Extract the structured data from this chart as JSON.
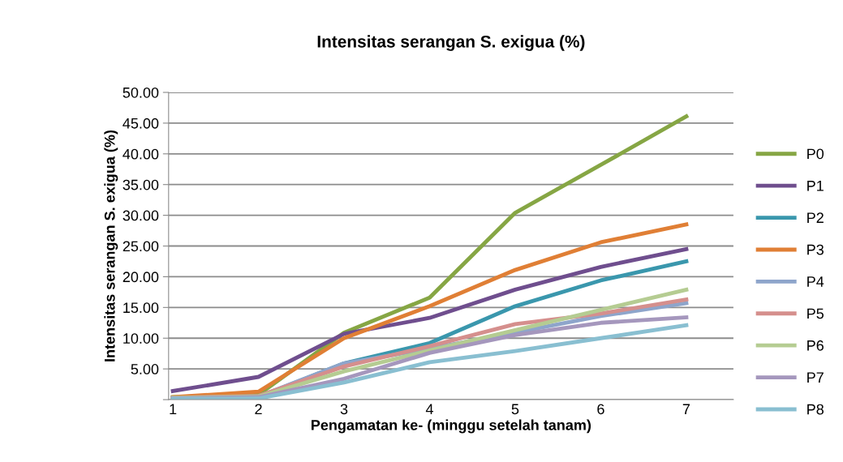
{
  "chart_data": {
    "type": "line",
    "title": "Intensitas serangan S. exigua (%)",
    "xlabel": "Pengamatan ke- (minggu setelah tanam)",
    "ylabel": "Intensitas serangan S. exigua (%)",
    "categories": [
      "1",
      "2",
      "3",
      "4",
      "5",
      "6",
      "7"
    ],
    "ylim": [
      0,
      50
    ],
    "yticks": [
      {
        "value": 0,
        "label": null
      },
      {
        "value": 5,
        "label": "5.00"
      },
      {
        "value": 10,
        "label": "10.00"
      },
      {
        "value": 15,
        "label": "15.00"
      },
      {
        "value": 20,
        "label": "20.00"
      },
      {
        "value": 25,
        "label": "25.00"
      },
      {
        "value": 30,
        "label": "30.00"
      },
      {
        "value": 35,
        "label": "35.00"
      },
      {
        "value": 40,
        "label": "40.00"
      },
      {
        "value": 45,
        "label": "45.00"
      },
      {
        "value": 50,
        "label": "50.00"
      }
    ],
    "grid": "y",
    "legend": "right",
    "marker": "none",
    "line_style": "solid",
    "series": [
      {
        "name": "P0",
        "color": "#86a644",
        "values": [
          0.4,
          0.8,
          10.9,
          16.6,
          30.4,
          38.2,
          46.1
        ]
      },
      {
        "name": "P1",
        "color": "#6f4e8e",
        "values": [
          1.4,
          3.7,
          10.7,
          13.3,
          17.9,
          21.6,
          24.5
        ]
      },
      {
        "name": "P2",
        "color": "#3a97ad",
        "values": [
          0.3,
          0.4,
          5.9,
          9.2,
          15.2,
          19.4,
          22.5
        ]
      },
      {
        "name": "P3",
        "color": "#e07f35",
        "values": [
          0.4,
          1.3,
          10.0,
          15.2,
          21.1,
          25.6,
          28.5
        ]
      },
      {
        "name": "P4",
        "color": "#8ea5cb",
        "values": [
          0.3,
          0.5,
          5.9,
          8.3,
          10.9,
          13.6,
          15.7
        ]
      },
      {
        "name": "P5",
        "color": "#d58f8d",
        "values": [
          0.3,
          0.6,
          5.4,
          8.7,
          12.3,
          14.0,
          16.3
        ]
      },
      {
        "name": "P6",
        "color": "#b5cc92",
        "values": [
          0.3,
          0.5,
          4.6,
          8.0,
          11.3,
          14.6,
          17.9
        ]
      },
      {
        "name": "P7",
        "color": "#a597bd",
        "values": [
          0.2,
          0.4,
          3.4,
          7.6,
          10.5,
          12.5,
          13.4
        ]
      },
      {
        "name": "P8",
        "color": "#89bfd1",
        "values": [
          0.1,
          0.2,
          2.8,
          6.1,
          7.9,
          10.0,
          12.1
        ]
      }
    ]
  }
}
